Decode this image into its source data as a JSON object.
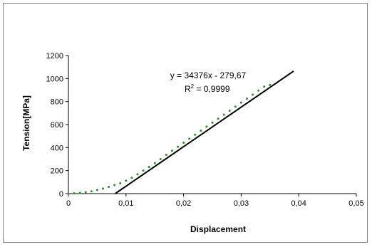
{
  "chart_data": {
    "type": "scatter",
    "xlabel": "Displacement",
    "ylabel": "Tension[MPa]",
    "xlim": [
      0,
      0.05
    ],
    "ylim": [
      0,
      1200
    ],
    "x_ticks": [
      "0",
      "0,01",
      "0,02",
      "0,03",
      "0,04",
      "0,05"
    ],
    "y_ticks": [
      "0",
      "200",
      "400",
      "600",
      "800",
      "1000",
      "1200"
    ],
    "grid": false,
    "legend": "none",
    "series": [
      {
        "kind": "scatter",
        "color": "#2e8b2e",
        "points": [
          [
            0.0,
            0
          ],
          [
            0.001,
            2
          ],
          [
            0.002,
            6
          ],
          [
            0.003,
            12
          ],
          [
            0.004,
            20
          ],
          [
            0.005,
            32
          ],
          [
            0.006,
            44
          ],
          [
            0.007,
            58
          ],
          [
            0.008,
            74
          ],
          [
            0.009,
            90
          ],
          [
            0.01,
            112
          ],
          [
            0.011,
            138
          ],
          [
            0.012,
            168
          ],
          [
            0.013,
            200
          ],
          [
            0.014,
            232
          ],
          [
            0.015,
            265
          ],
          [
            0.016,
            300
          ],
          [
            0.017,
            337
          ],
          [
            0.018,
            372
          ],
          [
            0.019,
            407
          ],
          [
            0.02,
            442
          ],
          [
            0.021,
            477
          ],
          [
            0.022,
            512
          ],
          [
            0.023,
            547
          ],
          [
            0.024,
            582
          ],
          [
            0.025,
            617
          ],
          [
            0.026,
            651
          ],
          [
            0.027,
            686
          ],
          [
            0.028,
            721
          ],
          [
            0.029,
            756
          ],
          [
            0.03,
            791
          ],
          [
            0.031,
            826
          ],
          [
            0.032,
            860
          ],
          [
            0.033,
            895
          ],
          [
            0.034,
            929
          ],
          [
            0.035,
            944
          ]
        ]
      },
      {
        "kind": "line",
        "color": "#000000",
        "points": [
          [
            0.00813,
            0
          ],
          [
            0.0391,
            1064
          ]
        ]
      }
    ],
    "annotations": {
      "equation": "y = 34376x - 279,67",
      "r2_prefix": "R",
      "r2_exp": "2",
      "r2_value": " = 0,9999"
    }
  }
}
